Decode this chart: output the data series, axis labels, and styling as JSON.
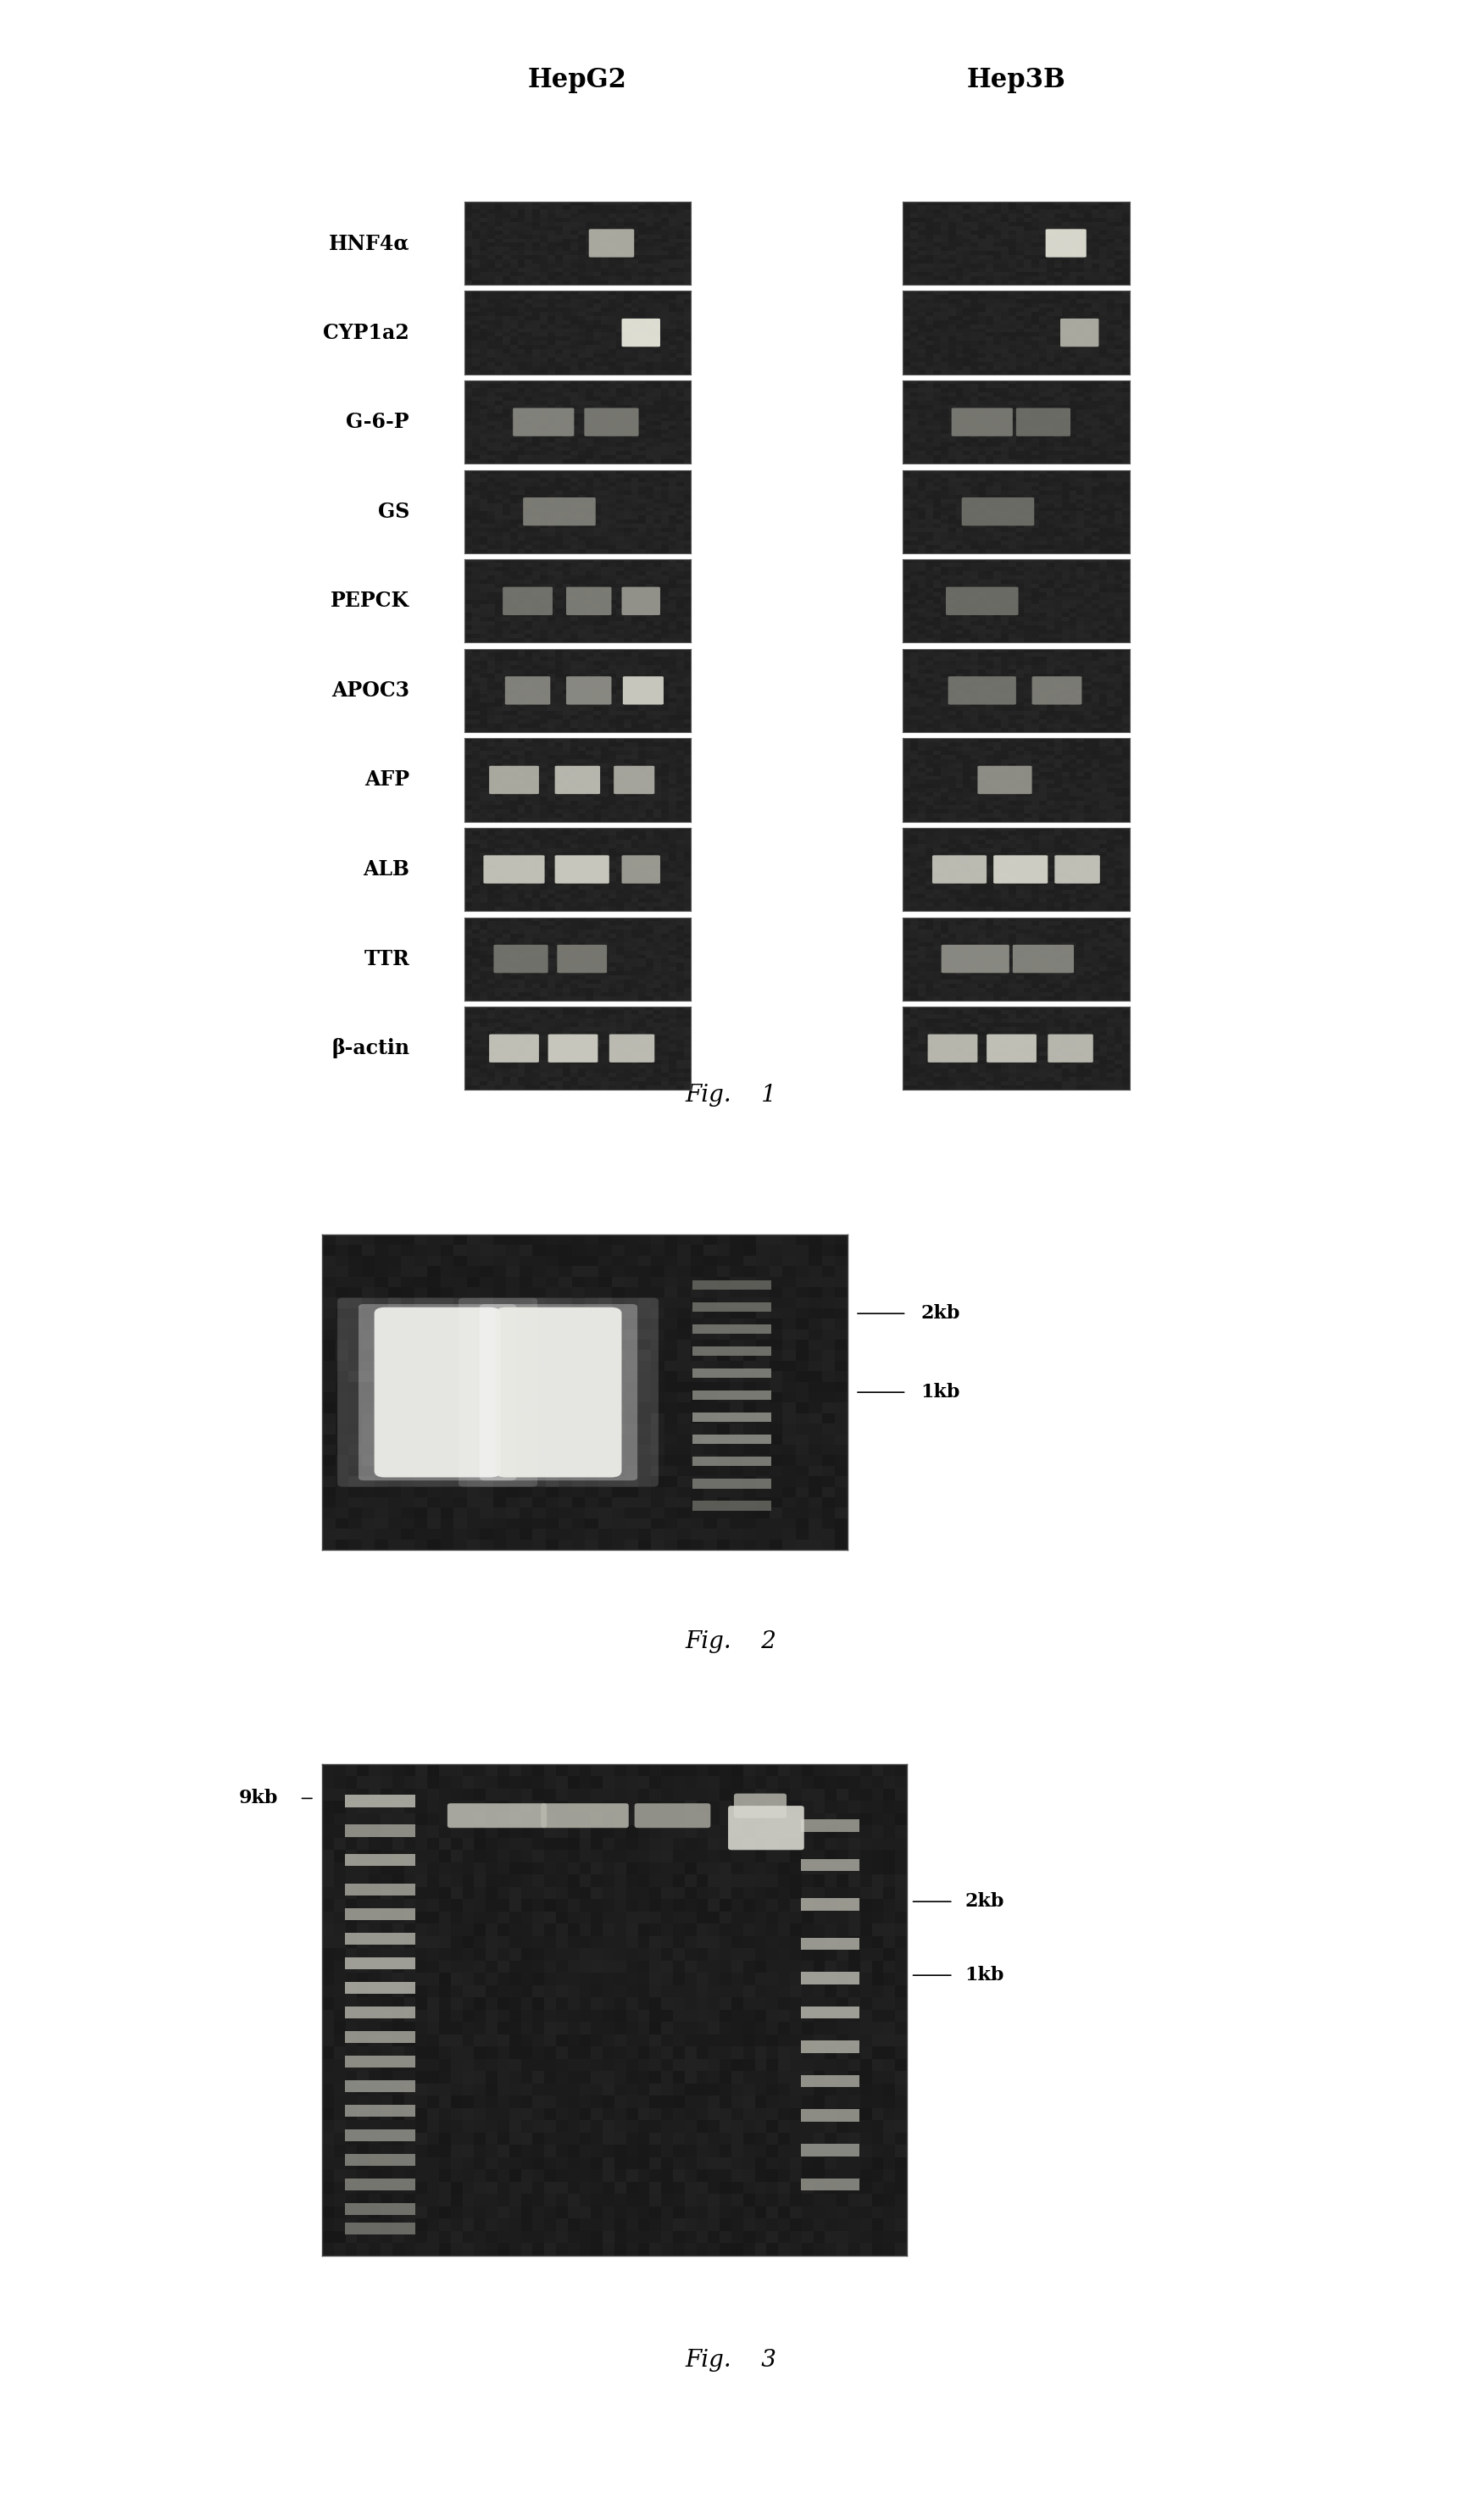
{
  "fig1_labels": [
    "HNF4α",
    "CYP1a2",
    "G-6-P",
    "GS",
    "PEPCK",
    "APOC3",
    "AFP",
    "ALB",
    "TTR",
    "β-actin"
  ],
  "col1_header": "HepG2",
  "col2_header": "Hep3B",
  "fig1_caption": "Fig.    1",
  "fig2_caption": "Fig.    2",
  "fig3_caption": "Fig.    3",
  "fig2_markers": [
    "2kb",
    "1kb"
  ],
  "fig3_markers_left": [
    "9kb"
  ],
  "fig3_markers_right": [
    "2kb",
    "1kb"
  ],
  "background_color": "#ffffff",
  "gel_bg": "#2a2a2a",
  "band_color_bright": "#e8e8e0",
  "band_color_mid": "#b0b0a8",
  "band_color_dim": "#888880"
}
